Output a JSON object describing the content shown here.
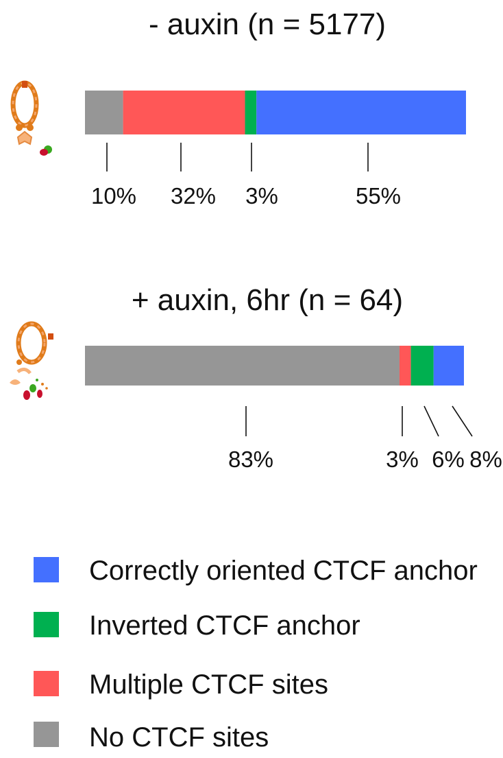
{
  "chart_data": [
    {
      "type": "bar",
      "orientation": "horizontal-stacked",
      "title": "- auxin (n = 5177)",
      "series": [
        {
          "name": "No CTCF sites",
          "value": 10,
          "label": "10%"
        },
        {
          "name": "Multiple CTCF sites",
          "value": 32,
          "label": "32%"
        },
        {
          "name": "Inverted CTCF anchor",
          "value": 3,
          "label": "3%"
        },
        {
          "name": "Correctly oriented CTCF anchor",
          "value": 55,
          "label": "55%"
        }
      ],
      "xlim": [
        0,
        100
      ]
    },
    {
      "type": "bar",
      "orientation": "horizontal-stacked",
      "title": "+ auxin, 6hr (n = 64)",
      "series": [
        {
          "name": "No CTCF sites",
          "value": 83,
          "label": "83%"
        },
        {
          "name": "Multiple CTCF sites",
          "value": 3,
          "label": "3%"
        },
        {
          "name": "Inverted CTCF anchor",
          "value": 6,
          "label": "6%"
        },
        {
          "name": "Correctly oriented CTCF anchor",
          "value": 8,
          "label": "8%"
        }
      ],
      "xlim": [
        0,
        100
      ]
    }
  ],
  "legend": {
    "position": "bottom-left",
    "items": [
      {
        "label": "Correctly oriented CTCF anchor",
        "color": "#4470ff"
      },
      {
        "label": "Inverted CTCF anchor",
        "color": "#00b050"
      },
      {
        "label": "Multiple CTCF sites",
        "color": "#ff5757"
      },
      {
        "label": "No CTCF sites",
        "color": "#969696"
      }
    ]
  },
  "colors": {
    "No CTCF sites": "#969696",
    "Multiple CTCF sites": "#ff5757",
    "Inverted CTCF anchor": "#00b050",
    "Correctly oriented CTCF anchor": "#4470ff"
  },
  "icons": [
    "cohesin-loop-intact-icon",
    "cohesin-loop-degraded-icon"
  ]
}
